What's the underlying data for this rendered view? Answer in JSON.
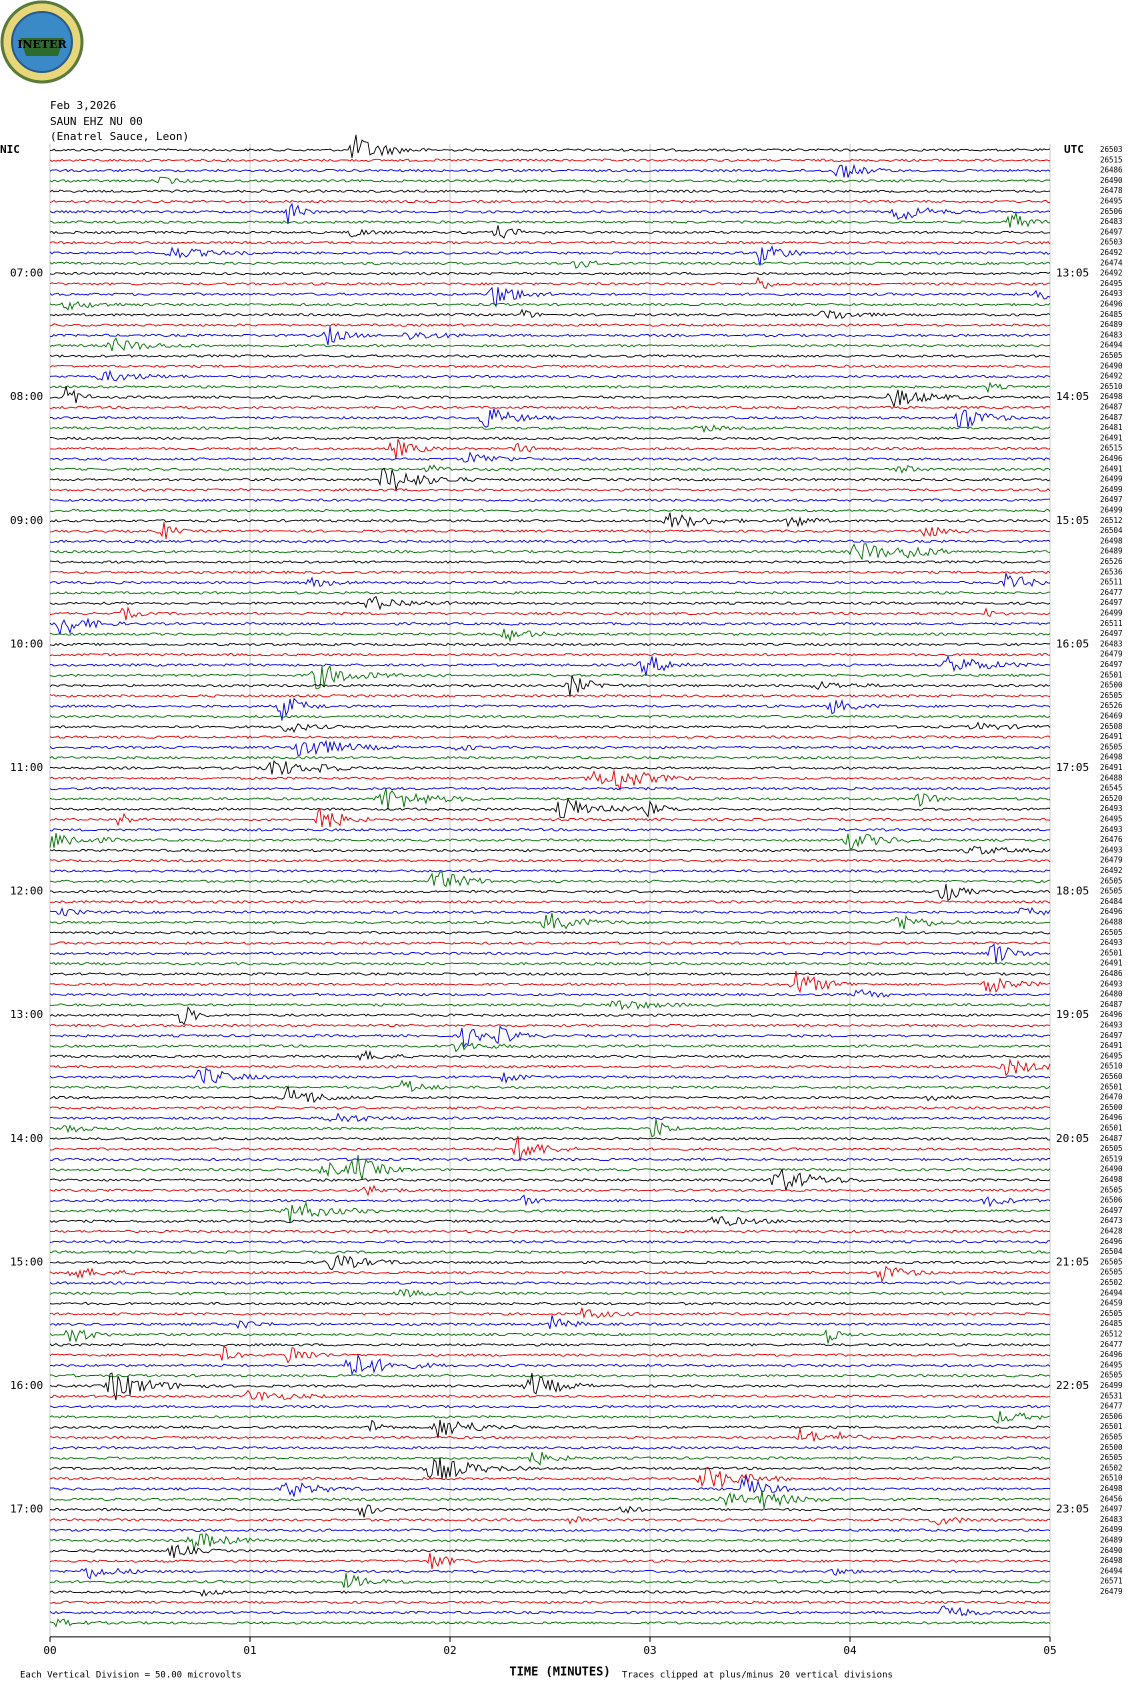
{
  "chart_data": {
    "type": "helicorder",
    "logo": "INETER",
    "date": "Feb 3,2026",
    "station": "SAUN EHZ NU 00",
    "location": "(Enatrel Sauce, Leon)",
    "left_zone": "NIC",
    "right_zone": "UTC",
    "left_hours": [
      "07:00",
      "08:00",
      "09:00",
      "10:00",
      "11:00",
      "12:00",
      "13:00",
      "14:00",
      "15:00",
      "16:00",
      "17:00"
    ],
    "right_hours": [
      "13:05",
      "14:05",
      "15:05",
      "16:05",
      "17:05",
      "18:05",
      "19:05",
      "20:05",
      "21:05",
      "22:05",
      "23:05"
    ],
    "trace_colors": [
      "#000000",
      "#e00000",
      "#0000e0",
      "#007000"
    ],
    "trace_ids": [
      "26503",
      "26515",
      "26486",
      "26490",
      "26478",
      "26495",
      "26506",
      "26483",
      "26497",
      "26503",
      "26492",
      "26474",
      "26492",
      "26495",
      "26493",
      "26496",
      "26485",
      "26489",
      "26483",
      "26494",
      "26505",
      "26490",
      "26492",
      "26510",
      "26498",
      "26487",
      "26487",
      "26481",
      "26491",
      "26515",
      "26496",
      "26491",
      "26499",
      "26499",
      "26497",
      "26499",
      "26512",
      "26504",
      "26498",
      "26489",
      "26526",
      "26536",
      "26511",
      "26477",
      "26497",
      "26499",
      "26511",
      "26497",
      "26483",
      "26479",
      "26497",
      "26501",
      "26500",
      "26505",
      "26526",
      "26469",
      "26508",
      "26491",
      "26505",
      "26498",
      "26491",
      "26488",
      "26545",
      "26520",
      "26493",
      "26495",
      "26493",
      "26476",
      "26493",
      "26479",
      "26492",
      "26505",
      "26505",
      "26484",
      "26496",
      "26488",
      "26505",
      "26493",
      "26501",
      "26491",
      "26486",
      "26493",
      "26480",
      "26487",
      "26496",
      "26493",
      "26497",
      "26491",
      "26495",
      "26510",
      "26560",
      "26501",
      "26470",
      "26500",
      "26496",
      "26501",
      "26487",
      "26505",
      "26519",
      "26490",
      "26498",
      "26505",
      "26506",
      "26497",
      "26473",
      "26428",
      "26496",
      "26504",
      "26505",
      "26505",
      "26502",
      "26494",
      "26459",
      "26505",
      "26485",
      "26512",
      "26477",
      "26496",
      "26495",
      "26505",
      "26499",
      "26531",
      "26477",
      "26506",
      "26501",
      "26505",
      "26500",
      "26505",
      "26502",
      "26510",
      "26498",
      "26456",
      "26497",
      "26483",
      "26499",
      "26489",
      "26490",
      "26498",
      "26494",
      "26571",
      "26479"
    ],
    "x_label": "TIME (MINUTES)",
    "xlim": [
      0,
      5
    ],
    "xticks": [
      {
        "value": 0,
        "label": "00"
      },
      {
        "value": 1,
        "label": "01"
      },
      {
        "value": 2,
        "label": "02"
      },
      {
        "value": 3,
        "label": "03"
      },
      {
        "value": 4,
        "label": "04"
      },
      {
        "value": 5,
        "label": "05"
      }
    ],
    "scale_note": "Each Vertical Division =",
    "scale_value": "50.00 microvolts",
    "clip_note": "Traces clipped at plus/minus 20 vertical divisions"
  }
}
